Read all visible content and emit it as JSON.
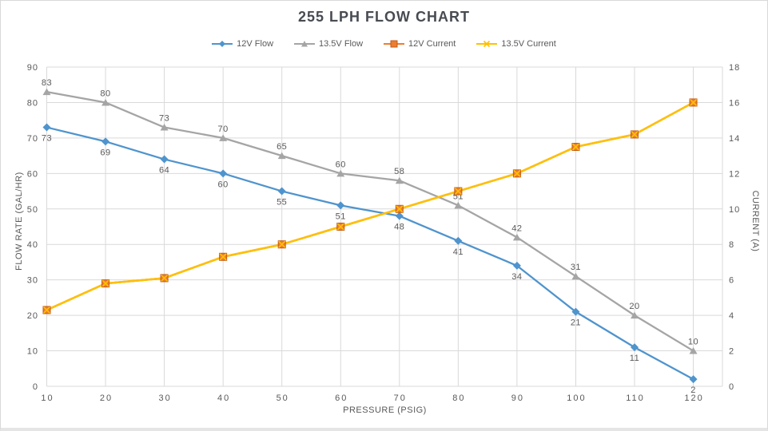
{
  "title": "255 LPH FLOW CHART",
  "colors": {
    "blue": "#4F94CD",
    "gray": "#A5A5A5",
    "orange": "#ED7D31",
    "orange_border": "#C05A15",
    "gold": "#FFC000",
    "grid": "#D9D9D9",
    "text": "#595959",
    "title_text": "#474B52"
  },
  "chart_data": {
    "type": "line",
    "title": "255 LPH FLOW CHART",
    "xlabel": "PRESSURE (PSIG)",
    "ylabel_left": "FLOW RATE (GAL/HR)",
    "ylabel_right": "CURRENT (A)",
    "x": [
      10,
      20,
      30,
      40,
      50,
      60,
      70,
      80,
      90,
      100,
      110,
      120
    ],
    "x_tick_labels": [
      "10",
      "20",
      "30",
      "40",
      "50",
      "60",
      "70",
      "80",
      "90",
      "100",
      "110",
      "120"
    ],
    "ylim_left": [
      0,
      90
    ],
    "y_left_ticks": [
      0,
      10,
      20,
      30,
      40,
      50,
      60,
      70,
      80,
      90
    ],
    "ylim_right": [
      0,
      18
    ],
    "y_right_ticks": [
      0,
      2,
      4,
      6,
      8,
      10,
      12,
      14,
      16,
      18
    ],
    "grid": true,
    "legend_position": "top",
    "series": [
      {
        "name": "12V Flow",
        "axis": "left",
        "color": "#4F94CD",
        "marker": "diamond",
        "values": [
          73,
          69,
          64,
          60,
          55,
          51,
          48,
          41,
          34,
          21,
          11,
          2
        ],
        "data_labels": true,
        "label_position": "below"
      },
      {
        "name": "13.5V Flow",
        "axis": "left",
        "color": "#A5A5A5",
        "marker": "triangle",
        "values": [
          83,
          80,
          73,
          70,
          65,
          60,
          58,
          51,
          42,
          31,
          20,
          10
        ],
        "data_labels": true,
        "label_position": "above"
      },
      {
        "name": "12V Current",
        "axis": "right",
        "color": "#ED7D31",
        "marker": "square",
        "values": [
          4.3,
          5.8,
          6.1,
          7.3,
          8.0,
          9.0,
          10.0,
          11.0,
          12.0,
          13.5,
          14.2,
          16.0
        ],
        "data_labels": false
      },
      {
        "name": "13.5V Current",
        "axis": "right",
        "color": "#FFC000",
        "marker": "x",
        "values": [
          4.3,
          5.8,
          6.1,
          7.3,
          8.0,
          9.0,
          10.0,
          11.0,
          12.0,
          13.5,
          14.2,
          16.0
        ],
        "data_labels": false
      }
    ]
  }
}
